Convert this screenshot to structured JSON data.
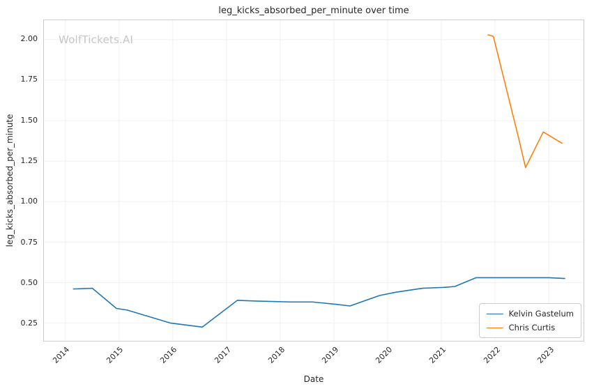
{
  "watermark": "WolfTickets.AI",
  "chart_data": {
    "type": "line",
    "title": "leg_kicks_absorbed_per_minute over time",
    "xlabel": "Date",
    "ylabel": "leg_kicks_absorbed_per_minute",
    "xlim": [
      2013.6,
      2023.65
    ],
    "ylim": [
      0.14,
      2.12
    ],
    "x_ticks": [
      2014,
      2015,
      2016,
      2017,
      2018,
      2019,
      2020,
      2021,
      2022,
      2023
    ],
    "y_ticks": [
      0.25,
      0.5,
      0.75,
      1.0,
      1.25,
      1.5,
      1.75,
      2.0
    ],
    "grid": true,
    "grid_color": "#f0f0f0",
    "legend_position": "lower right",
    "series": [
      {
        "name": "Kelvin Gastelum",
        "color": "#1f77b4",
        "x": [
          2014.15,
          2014.5,
          2014.95,
          2015.15,
          2015.95,
          2016.55,
          2017.2,
          2017.6,
          2018.2,
          2018.6,
          2019.05,
          2019.3,
          2019.85,
          2020.15,
          2020.65,
          2021.05,
          2021.25,
          2021.65,
          2022.1,
          2023.0,
          2023.3
        ],
        "y": [
          0.46,
          0.465,
          0.34,
          0.33,
          0.25,
          0.225,
          0.39,
          0.385,
          0.38,
          0.38,
          0.365,
          0.355,
          0.42,
          0.44,
          0.465,
          0.47,
          0.475,
          0.53,
          0.53,
          0.53,
          0.525
        ]
      },
      {
        "name": "Chris Curtis",
        "color": "#ff7f0e",
        "x": [
          2021.87,
          2021.97,
          2022.45,
          2022.57,
          2022.9,
          2023.25
        ],
        "y": [
          2.03,
          2.02,
          1.38,
          1.21,
          1.43,
          1.36
        ]
      }
    ]
  }
}
